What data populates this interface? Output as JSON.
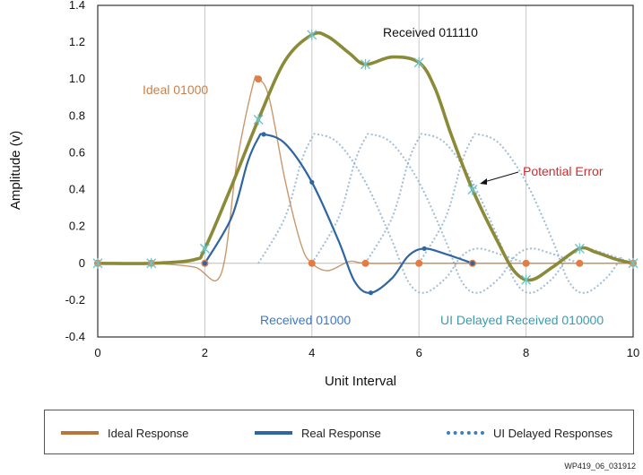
{
  "chart_data": {
    "type": "line",
    "xlabel": "Unit Interval",
    "ylabel": "Amplitude (v)",
    "xlim": [
      0,
      10
    ],
    "ylim": [
      -0.4,
      1.4
    ],
    "x_ticks": [
      "0",
      "2",
      "4",
      "6",
      "8",
      "10"
    ],
    "y_ticks": [
      "1.4",
      "1.2",
      "1.0",
      "0.8",
      "0.6",
      "0.4",
      "0.2",
      "0",
      "-0.2",
      "-0.4"
    ],
    "grid": "vertical",
    "series": [
      {
        "name": "Ideal Response",
        "color": "#b8763a",
        "points": [
          [
            0,
            0
          ],
          [
            1,
            0
          ],
          [
            1.8,
            -0.02
          ],
          [
            2.3,
            -0.06
          ],
          [
            2.6,
            0.55
          ],
          [
            2.9,
            0.97
          ],
          [
            3.0,
            1.0
          ],
          [
            3.2,
            0.9
          ],
          [
            3.5,
            0.45
          ],
          [
            3.8,
            0.1
          ],
          [
            4.0,
            0
          ],
          [
            4.3,
            -0.04
          ],
          [
            4.7,
            0.01
          ],
          [
            5,
            0
          ],
          [
            6,
            0
          ],
          [
            7,
            0
          ],
          [
            8,
            0
          ],
          [
            9,
            0
          ],
          [
            10,
            0
          ]
        ]
      },
      {
        "name": "Real Response",
        "color": "#2e65a3",
        "points": [
          [
            2,
            0
          ],
          [
            2.5,
            0.25
          ],
          [
            2.8,
            0.55
          ],
          [
            3.0,
            0.68
          ],
          [
            3.1,
            0.7
          ],
          [
            3.5,
            0.65
          ],
          [
            4.0,
            0.44
          ],
          [
            4.5,
            0.12
          ],
          [
            4.8,
            -0.1
          ],
          [
            5.1,
            -0.16
          ],
          [
            5.5,
            -0.08
          ],
          [
            5.8,
            0.04
          ],
          [
            6.1,
            0.08
          ],
          [
            6.5,
            0.05
          ],
          [
            7,
            0
          ]
        ]
      },
      {
        "name": "UI Delayed Responses",
        "color": "#8fb1cf",
        "offsets": [
          1,
          2,
          3,
          4
        ],
        "shape_points": [
          [
            2,
            0
          ],
          [
            2.5,
            0.25
          ],
          [
            2.8,
            0.55
          ],
          [
            3.0,
            0.68
          ],
          [
            3.1,
            0.7
          ],
          [
            3.5,
            0.65
          ],
          [
            4.0,
            0.44
          ],
          [
            4.5,
            0.12
          ],
          [
            4.8,
            -0.1
          ],
          [
            5.1,
            -0.16
          ],
          [
            5.5,
            -0.08
          ],
          [
            5.8,
            0.04
          ],
          [
            6.1,
            0.08
          ],
          [
            6.5,
            0.05
          ],
          [
            7,
            0
          ]
        ]
      },
      {
        "name": "Received 011110",
        "color": "#8a8a38",
        "points": [
          [
            0,
            0
          ],
          [
            1,
            0
          ],
          [
            1.8,
            0.02
          ],
          [
            2.0,
            0.08
          ],
          [
            2.5,
            0.42
          ],
          [
            3.0,
            0.78
          ],
          [
            3.5,
            1.1
          ],
          [
            4.0,
            1.24
          ],
          [
            4.3,
            1.23
          ],
          [
            4.7,
            1.14
          ],
          [
            5.0,
            1.08
          ],
          [
            5.5,
            1.12
          ],
          [
            6.0,
            1.09
          ],
          [
            6.3,
            0.95
          ],
          [
            6.6,
            0.7
          ],
          [
            7.0,
            0.4
          ],
          [
            7.5,
            0.1
          ],
          [
            7.8,
            -0.05
          ],
          [
            8.1,
            -0.09
          ],
          [
            8.5,
            -0.02
          ],
          [
            9.0,
            0.08
          ],
          [
            9.3,
            0.06
          ],
          [
            9.7,
            0.02
          ],
          [
            10,
            0
          ]
        ]
      }
    ],
    "markers": {
      "ideal_samples": [
        [
          0,
          0
        ],
        [
          1,
          0
        ],
        [
          2,
          0
        ],
        [
          3,
          1.0
        ],
        [
          4,
          0
        ],
        [
          5,
          0
        ],
        [
          6,
          0
        ],
        [
          7,
          0
        ],
        [
          8,
          0
        ],
        [
          9,
          0
        ],
        [
          10,
          0
        ]
      ],
      "real_samples": [
        [
          2,
          0
        ],
        [
          3.1,
          0.7
        ],
        [
          4,
          0.44
        ],
        [
          5.1,
          -0.16
        ],
        [
          6.1,
          0.08
        ],
        [
          7,
          0
        ]
      ],
      "received_samples": [
        [
          0,
          0
        ],
        [
          1,
          0
        ],
        [
          2,
          0.08
        ],
        [
          3,
          0.78
        ],
        [
          4,
          1.24
        ],
        [
          5,
          1.08
        ],
        [
          6,
          1.09
        ],
        [
          7,
          0.4
        ],
        [
          8,
          -0.09
        ],
        [
          9,
          0.08
        ],
        [
          10,
          0
        ]
      ]
    },
    "annotations": {
      "received_011110": "Received 011110",
      "ideal_01000": "Ideal 01000",
      "potential_error": "Potential Error",
      "received_01000": "Received 01000",
      "ui_delayed": "UI Delayed Received 010000"
    },
    "annotation_colors": {
      "received_011110": "#111111",
      "ideal_01000": "#c8814a",
      "potential_error": "#d6282b",
      "received_01000": "#3c78c8",
      "ui_delayed": "#3a9bb0"
    }
  },
  "legend": {
    "ideal": "Ideal Response",
    "real": "Real Response",
    "delayed": "UI Delayed Responses"
  },
  "footnote": "WP419_06_031912"
}
